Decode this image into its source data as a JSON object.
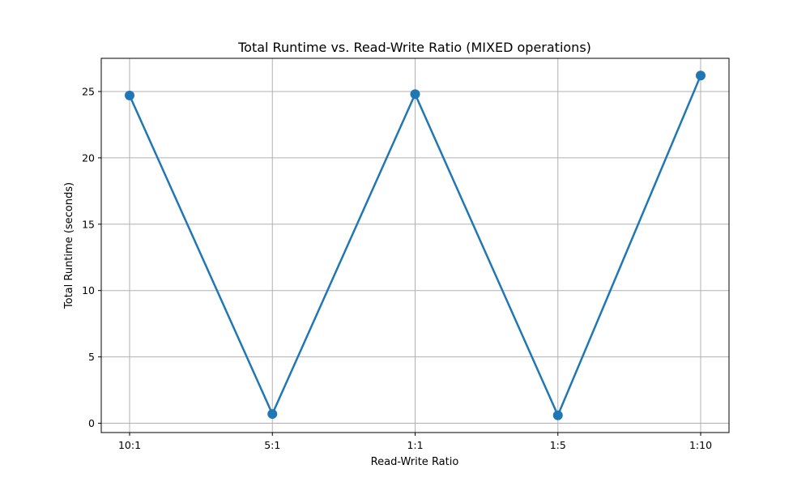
{
  "chart_data": {
    "type": "line",
    "title": "Total Runtime vs. Read-Write Ratio (MIXED operations)",
    "xlabel": "Read-Write Ratio",
    "ylabel": "Total Runtime (seconds)",
    "categories": [
      "10:1",
      "5:1",
      "1:1",
      "1:5",
      "1:10"
    ],
    "series": [
      {
        "values": [
          24.7,
          0.7,
          24.8,
          0.6,
          26.2
        ],
        "color": "#1f77b4"
      }
    ],
    "ylim": [
      -0.7,
      27.5
    ],
    "yticks": [
      0,
      5,
      10,
      15,
      20,
      25
    ],
    "grid": true,
    "marker": "circle",
    "colors": {
      "grid": "#b0b0b0",
      "axes": "#000000",
      "line": "#1f77b4"
    }
  }
}
